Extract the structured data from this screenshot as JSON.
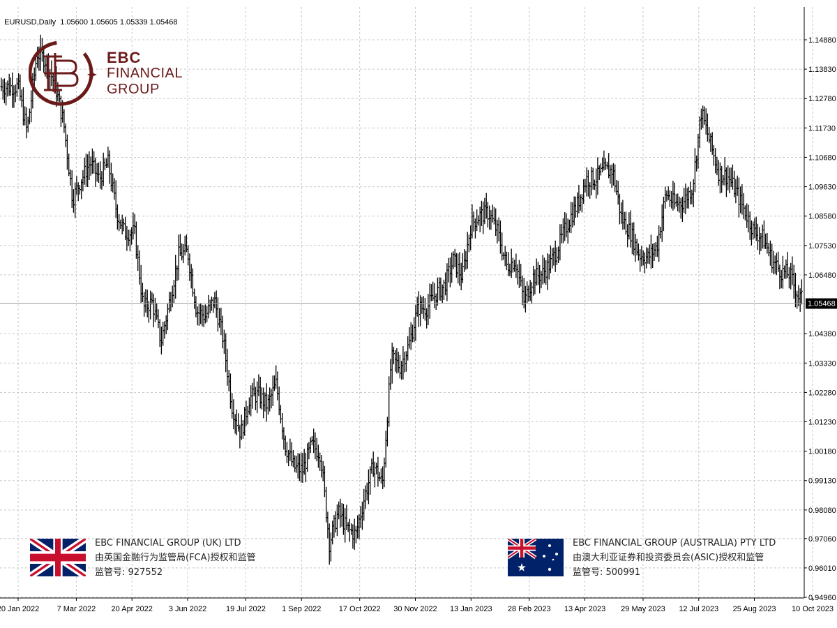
{
  "header": {
    "symbol": "EURUSD,Daily",
    "ohlc": "1.05600 1.05605 1.05339 1.05468"
  },
  "logo": {
    "line1": "EBC",
    "line2": "FINANCIAL",
    "line3": "GROUP",
    "brand_color": "#6b1a1a"
  },
  "regulators": {
    "uk": {
      "flag_icon": "uk-flag-icon",
      "name": "EBC FINANCIAL GROUP (UK) LTD",
      "desc": "由英国金融行为监管局(FCA)授权和监管",
      "reg": "监管号: 927552"
    },
    "au": {
      "flag_icon": "australia-flag-icon",
      "name": "EBC FINANCIAL GROUP (AUSTRALIA) PTY LTD",
      "desc": "由澳大利亚证券和投资委员会(ASIC)授权和监管",
      "reg": "监管号: 500991"
    }
  },
  "chart_data": {
    "type": "ohlc",
    "symbol": "EURUSD",
    "timeframe": "Daily",
    "current_price": "1.05468",
    "ylim": [
      0.9496,
      1.154
    ],
    "y_ticks": [
      "1.14880",
      "1.13830",
      "1.12780",
      "1.11730",
      "1.10680",
      "1.09630",
      "1.08580",
      "1.07530",
      "1.06480",
      "1.04380",
      "1.03330",
      "1.02280",
      "1.01230",
      "1.00180",
      "0.99130",
      "0.98080",
      "0.97060",
      "0.96010",
      "0.94960"
    ],
    "x_ticks": [
      "20 Jan 2022",
      "7 Mar 2022",
      "20 Apr 2022",
      "3 Jun 2022",
      "19 Jul 2022",
      "1 Sep 2022",
      "17 Oct 2022",
      "30 Nov 2022",
      "13 Jan 2023",
      "28 Feb 2023",
      "13 Apr 2023",
      "29 May 2023",
      "12 Jul 2023",
      "25 Aug 2023",
      "10 Oct 2023"
    ],
    "grid": true,
    "bar_color": "#000000",
    "grid_color": "#c8c8c8",
    "close_path": [
      [
        "20 Jan 2022",
        1.132
      ],
      [
        "27 Jan 2022",
        1.116
      ],
      [
        "4 Feb 2022",
        1.144
      ],
      [
        "10 Feb 2022",
        1.142
      ],
      [
        "18 Feb 2022",
        1.133
      ],
      [
        "25 Feb 2022",
        1.119
      ],
      [
        "4 Mar 2022",
        1.092
      ],
      [
        "11 Mar 2022",
        1.099
      ],
      [
        "18 Mar 2022",
        1.105
      ],
      [
        "25 Mar 2022",
        1.099
      ],
      [
        "1 Apr 2022",
        1.105
      ],
      [
        "8 Apr 2022",
        1.087
      ],
      [
        "14 Apr 2022",
        1.08
      ],
      [
        "22 Apr 2022",
        1.08
      ],
      [
        "29 Apr 2022",
        1.053
      ],
      [
        "6 May 2022",
        1.055
      ],
      [
        "13 May 2022",
        1.041
      ],
      [
        "20 May 2022",
        1.056
      ],
      [
        "27 May 2022",
        1.072
      ],
      [
        "3 Jun 2022",
        1.073
      ],
      [
        "10 Jun 2022",
        1.052
      ],
      [
        "17 Jun 2022",
        1.05
      ],
      [
        "24 Jun 2022",
        1.056
      ],
      [
        "1 Jul 2022",
        1.042
      ],
      [
        "8 Jul 2022",
        1.018
      ],
      [
        "15 Jul 2022",
        1.008
      ],
      [
        "22 Jul 2022",
        1.021
      ],
      [
        "29 Jul 2022",
        1.022
      ],
      [
        "5 Aug 2022",
        1.018
      ],
      [
        "12 Aug 2022",
        1.026
      ],
      [
        "19 Aug 2022",
        1.004
      ],
      [
        "26 Aug 2022",
        0.996
      ],
      [
        "2 Sep 2022",
        0.995
      ],
      [
        "9 Sep 2022",
        1.004
      ],
      [
        "16 Sep 2022",
        1.001
      ],
      [
        "23 Sep 2022",
        0.969
      ],
      [
        "30 Sep 2022",
        0.98
      ],
      [
        "7 Oct 2022",
        0.974
      ],
      [
        "14 Oct 2022",
        0.972
      ],
      [
        "21 Oct 2022",
        0.986
      ],
      [
        "28 Oct 2022",
        0.997
      ],
      [
        "4 Nov 2022",
        0.99
      ],
      [
        "11 Nov 2022",
        1.035
      ],
      [
        "18 Nov 2022",
        1.032
      ],
      [
        "25 Nov 2022",
        1.04
      ],
      [
        "2 Dec 2022",
        1.053
      ],
      [
        "9 Dec 2022",
        1.053
      ],
      [
        "16 Dec 2022",
        1.058
      ],
      [
        "23 Dec 2022",
        1.061
      ],
      [
        "30 Dec 2022",
        1.07
      ],
      [
        "6 Jan 2023",
        1.064
      ],
      [
        "13 Jan 2023",
        1.083
      ],
      [
        "20 Jan 2023",
        1.086
      ],
      [
        "27 Jan 2023",
        1.087
      ],
      [
        "3 Feb 2023",
        1.08
      ],
      [
        "10 Feb 2023",
        1.068
      ],
      [
        "17 Feb 2023",
        1.07
      ],
      [
        "24 Feb 2023",
        1.055
      ],
      [
        "3 Mar 2023",
        1.064
      ],
      [
        "10 Mar 2023",
        1.065
      ],
      [
        "17 Mar 2023",
        1.069
      ],
      [
        "24 Mar 2023",
        1.076
      ],
      [
        "31 Mar 2023",
        1.084
      ],
      [
        "7 Apr 2023",
        1.09
      ],
      [
        "14 Apr 2023",
        1.099
      ],
      [
        "21 Apr 2023",
        1.099
      ],
      [
        "28 Apr 2023",
        1.102
      ],
      [
        "5 May 2023",
        1.102
      ],
      [
        "12 May 2023",
        1.085
      ],
      [
        "19 May 2023",
        1.08
      ],
      [
        "26 May 2023",
        1.072
      ],
      [
        "2 Jun 2023",
        1.071
      ],
      [
        "9 Jun 2023",
        1.075
      ],
      [
        "16 Jun 2023",
        1.094
      ],
      [
        "23 Jun 2023",
        1.09
      ],
      [
        "30 Jun 2023",
        1.091
      ],
      [
        "7 Jul 2023",
        1.096
      ],
      [
        "14 Jul 2023",
        1.123
      ],
      [
        "21 Jul 2023",
        1.112
      ],
      [
        "28 Jul 2023",
        1.101
      ],
      [
        "4 Aug 2023",
        1.1
      ],
      [
        "11 Aug 2023",
        1.094
      ],
      [
        "18 Aug 2023",
        1.087
      ],
      [
        "25 Aug 2023",
        1.08
      ],
      [
        "1 Sep 2023",
        1.078
      ],
      [
        "8 Sep 2023",
        1.07
      ],
      [
        "15 Sep 2023",
        1.066
      ],
      [
        "22 Sep 2023",
        1.065
      ],
      [
        "29 Sep 2023",
        1.057
      ],
      [
        "6 Oct 2023",
        1.055
      ],
      [
        "13 Oct 2023",
        1.052
      ],
      [
        "16 Oct 2023",
        1.0547
      ]
    ]
  }
}
